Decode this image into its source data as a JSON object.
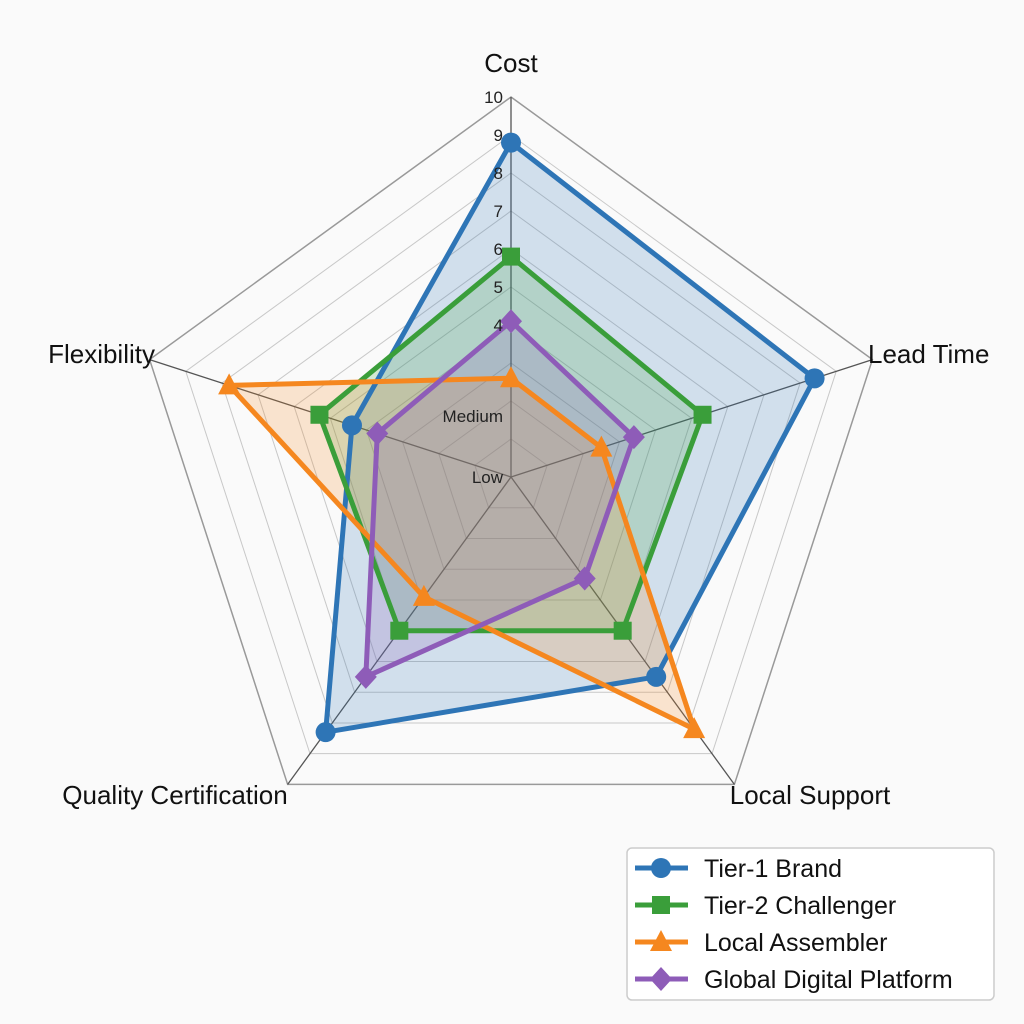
{
  "chart_data": {
    "type": "radar",
    "axes": [
      "Cost",
      "Lead Time",
      "Local Support",
      "Quality Certification",
      "Flexibility"
    ],
    "range": [
      0,
      10
    ],
    "grid": true,
    "legend_position": "bottom-right",
    "tick_labels": [
      {
        "value": 10,
        "label": "10"
      },
      {
        "value": 9,
        "label": "9"
      },
      {
        "value": 8,
        "label": "8"
      },
      {
        "value": 7,
        "label": "7"
      },
      {
        "value": 6,
        "label": "6"
      },
      {
        "value": 5,
        "label": "5"
      },
      {
        "value": 4,
        "label": "4"
      },
      {
        "value": 1.6,
        "label": "Medium"
      },
      {
        "value": 0,
        "label": "Low"
      }
    ],
    "series": [
      {
        "name": "Tier-1 Brand",
        "color": "#2e75b6",
        "marker": "circle",
        "values": [
          8.8,
          8.4,
          6.5,
          8.3,
          4.4
        ]
      },
      {
        "name": "Tier-2 Challenger",
        "color": "#3a9e3a",
        "marker": "square",
        "values": [
          5.8,
          5.3,
          5.0,
          5.0,
          5.3
        ]
      },
      {
        "name": "Local Assembler",
        "color": "#f5871f",
        "marker": "triangle",
        "values": [
          2.6,
          2.5,
          8.2,
          3.9,
          7.8
        ]
      },
      {
        "name": "Global Digital Platform",
        "color": "#8e5cb8",
        "marker": "diamond",
        "values": [
          4.1,
          3.4,
          3.3,
          6.5,
          3.7
        ]
      }
    ]
  }
}
